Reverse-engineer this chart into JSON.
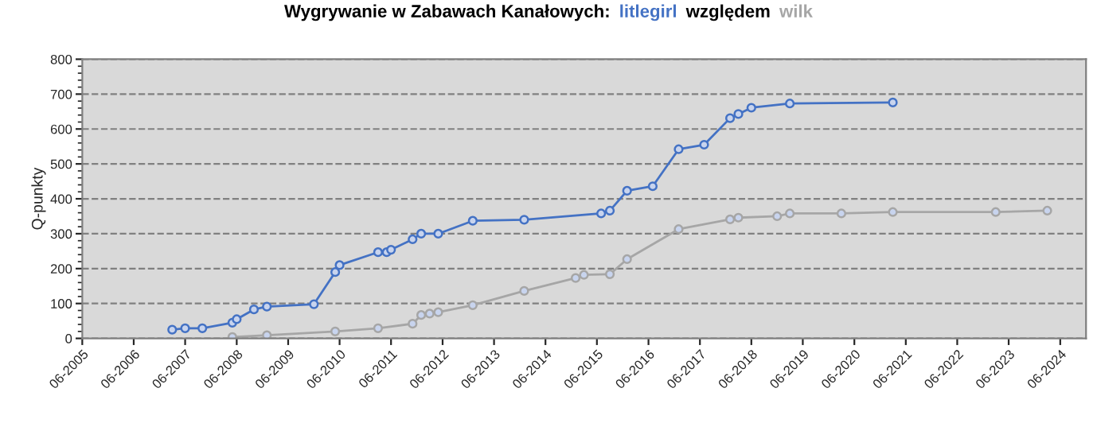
{
  "chart_data": {
    "type": "line",
    "title": "Wygrywanie w Zabawach Kanałowych:",
    "annotations": [
      "względem"
    ],
    "ylabel": "Q-punkty",
    "ylim": [
      0,
      800
    ],
    "yticks": [
      0,
      100,
      200,
      300,
      400,
      500,
      600,
      700,
      800
    ],
    "xlim": [
      "2005-06",
      "2024-12"
    ],
    "xticks": [
      {
        "value": "2005-06",
        "label": "06-2005"
      },
      {
        "value": "2006-06",
        "label": "06-2006"
      },
      {
        "value": "2007-06",
        "label": "06-2007"
      },
      {
        "value": "2008-06",
        "label": "06-2008"
      },
      {
        "value": "2009-06",
        "label": "06-2009"
      },
      {
        "value": "2010-06",
        "label": "06-2010"
      },
      {
        "value": "2011-06",
        "label": "06-2011"
      },
      {
        "value": "2012-06",
        "label": "06-2012"
      },
      {
        "value": "2013-06",
        "label": "06-2013"
      },
      {
        "value": "2014-06",
        "label": "06-2014"
      },
      {
        "value": "2015-06",
        "label": "06-2015"
      },
      {
        "value": "2016-06",
        "label": "06-2016"
      },
      {
        "value": "2017-06",
        "label": "06-2017"
      },
      {
        "value": "2018-06",
        "label": "06-2018"
      },
      {
        "value": "2019-06",
        "label": "06-2019"
      },
      {
        "value": "2020-06",
        "label": "06-2020"
      },
      {
        "value": "2021-06",
        "label": "06-2021"
      },
      {
        "value": "2022-06",
        "label": "06-2022"
      },
      {
        "value": "2023-06",
        "label": "06-2023"
      },
      {
        "value": "2024-06",
        "label": "06-2024"
      }
    ],
    "grid": "y",
    "legend": false,
    "marker": "circle",
    "line_style": "solid",
    "series": [
      {
        "name": "litlegirl",
        "color": "#4472c4",
        "x": [
          "2007-03",
          "2007-06",
          "2007-10",
          "2008-05",
          "2008-06",
          "2008-10",
          "2009-01",
          "2009-12",
          "2010-05",
          "2010-06",
          "2011-03",
          "2011-05",
          "2011-06",
          "2011-11",
          "2012-01",
          "2012-05",
          "2013-01",
          "2014-01",
          "2015-07",
          "2015-09",
          "2016-01",
          "2016-07",
          "2017-01",
          "2017-07",
          "2018-01",
          "2018-03",
          "2018-06",
          "2019-03",
          "2021-03"
        ],
        "values": [
          25,
          29,
          29,
          45,
          55,
          83,
          91,
          98,
          190,
          210,
          247,
          247,
          254,
          284,
          300,
          300,
          337,
          340,
          358,
          366,
          423,
          436,
          542,
          555,
          631,
          643,
          661,
          673,
          676
        ]
      },
      {
        "name": "wilk",
        "color": "#a6a6a6",
        "x": [
          "2008-05",
          "2009-01",
          "2010-05",
          "2011-03",
          "2011-11",
          "2012-01",
          "2012-03",
          "2012-05",
          "2013-01",
          "2014-01",
          "2015-01",
          "2015-03",
          "2015-09",
          "2016-01",
          "2017-01",
          "2018-01",
          "2018-03",
          "2018-12",
          "2019-03",
          "2020-03",
          "2021-03",
          "2023-03",
          "2024-03"
        ],
        "values": [
          4,
          9,
          20,
          29,
          42,
          67,
          71,
          75,
          95,
          136,
          173,
          182,
          184,
          227,
          313,
          341,
          346,
          350,
          358,
          358,
          362,
          362,
          366
        ]
      }
    ]
  }
}
